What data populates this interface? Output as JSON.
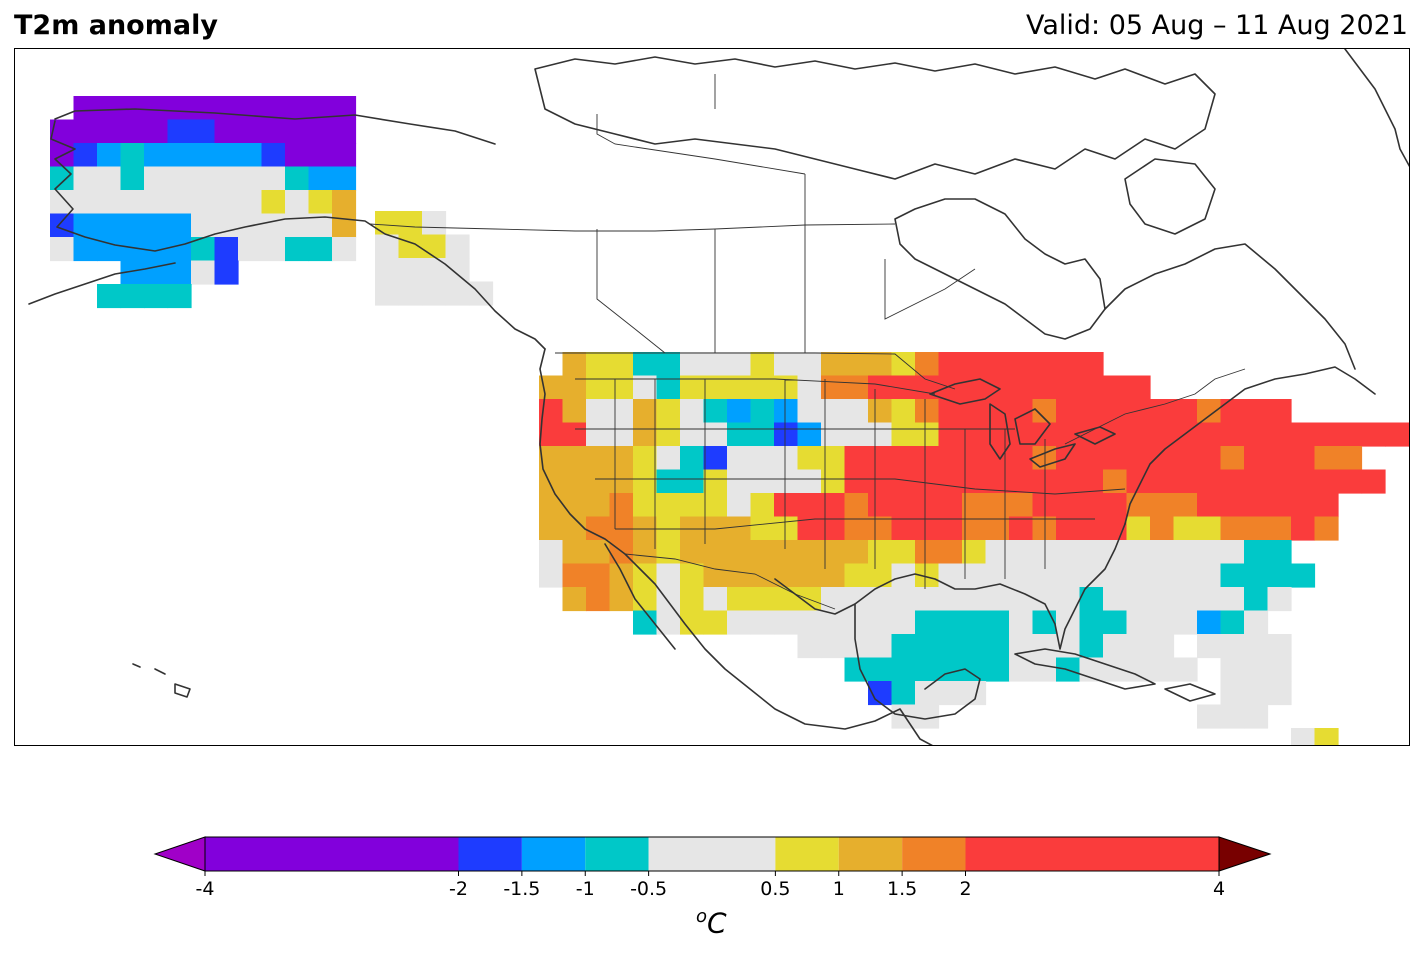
{
  "header": {
    "title": "T2m anomaly",
    "valid": "Valid: 05 Aug – 11 Aug 2021"
  },
  "colorbar": {
    "unit_superscript": "o",
    "unit": "C",
    "bins": [
      {
        "from": -4,
        "to": -2,
        "color": "#8200dc"
      },
      {
        "from": -2,
        "to": -1.5,
        "color": "#1e3cff"
      },
      {
        "from": -1.5,
        "to": -1,
        "color": "#00a0ff"
      },
      {
        "from": -1,
        "to": -0.5,
        "color": "#00c8c8"
      },
      {
        "from": -0.5,
        "to": 0.5,
        "color": "#e6e6e6"
      },
      {
        "from": 0.5,
        "to": 1,
        "color": "#e6dc32"
      },
      {
        "from": 1,
        "to": 1.5,
        "color": "#e6af2d"
      },
      {
        "from": 1.5,
        "to": 2,
        "color": "#f08228"
      },
      {
        "from": 2,
        "to": 4,
        "color": "#fa3c3c"
      }
    ],
    "under_color": "#a000c8",
    "over_color": "#780000",
    "ticks": [
      "-4",
      "-2",
      "-1.5",
      "-1",
      "-0.5",
      "0.5",
      "1",
      "1.5",
      "2",
      "4"
    ],
    "tick_values": [
      -4,
      -2,
      -1.5,
      -1,
      -0.5,
      0.5,
      1,
      1.5,
      2,
      4
    ]
  },
  "map": {
    "extent": "North America",
    "coastline_color": "#333333",
    "legend": {
      "P": "#8200dc",
      "B": "#1e3cff",
      "L": "#00a0ff",
      "C": "#00c8c8",
      "G": "#e6e6e6",
      "Y": "#e6dc32",
      "O": "#e6af2d",
      "D": "#f08228",
      "R": "#fa3c3c"
    },
    "grids": {
      "alaska": [
        ".PPPPPPPPPPPP",
        "PPPPPBBPPPPPP",
        "PBLCLLLLLBPPP",
        "CGGCGGGGGGCLL",
        "GGGGGGGGGYGYO",
        "BLLLLLGGGGGGO",
        "GLLLLLCBGGCCG",
        "...LLLGB.....",
        "..CCCC......."
      ],
      "panhandle": [
        "YYG",
        "GYYG",
        "GGGG",
        "GGGGG"
      ],
      "conus": [
        ".OYYCCGGGYGGOOOYDRRRRRRR.........",
        "OOYYGCYYYYYGDDRRRRRRRRRRRR.......",
        "ROGGOYGCLCLGGGOYDRRRRDRRRRRRDRRR.",
        "RRGGOYGGCCBLGGGYYRRRRRRRRRRRRRRRRRRRRRRG",
        "OOOOYGCBGGGYYRRRRRRRRDRRRRRRRDRRRDD",
        "OOOOYCCYGGGGYRRRRRRRRRRRDRRRRRRRRRRR",
        "OOODYYYYGYRRRDRRRRDDDRRRRDDDRRRRRR",
        "OODDOYOOOYYRRDDRRRDDRDRRRYDYYDDDRD",
        "GOODOYOOOOOOOOYYDDYGGGGGGGGGGGCC",
        "GDDOYGYOOOOOOYYGYGGGGGGGGGGGGCCCC",
        ".ODOYGYGYYYYGGGGGGGGGGGCGGGGGGCG",
        "....CGYYGGGGGGGGCCCCGCGCCGGGLCG",
        "...........GGGGCCCCCGGGCGGG.GGGG",
        ".............CCCCCCCGGCGGGGG.GGG",
        "..............BCGGG..........GGG",
        "...............GG...........GGG",
        "................................GY"
      ]
    }
  }
}
